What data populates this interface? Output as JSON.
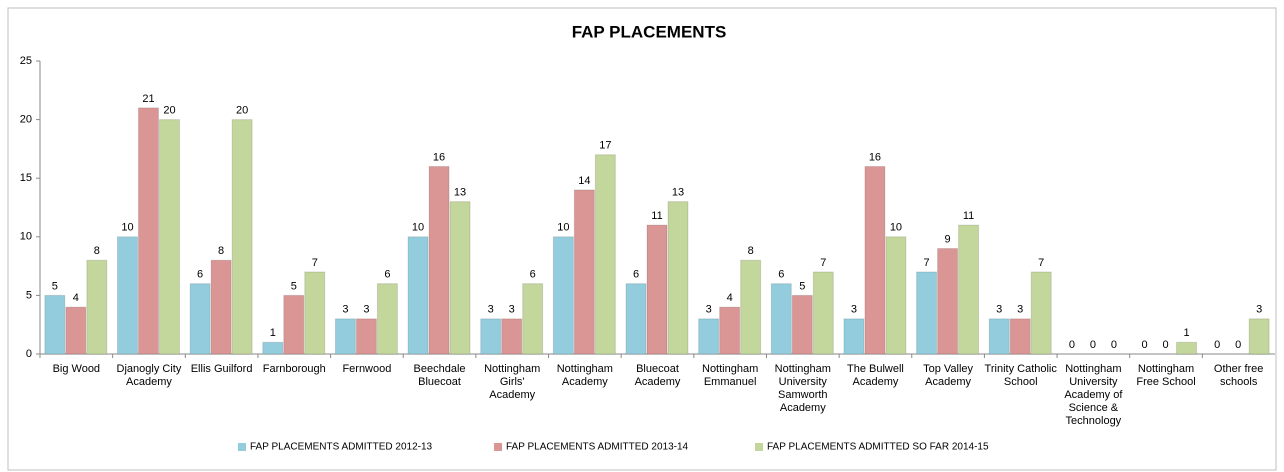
{
  "chart_data": {
    "type": "bar",
    "title": "FAP PLACEMENTS",
    "categories": [
      "Big Wood",
      "Djanogly City Academy",
      "Ellis Guilford",
      "Farnborough",
      "Fernwood",
      "Beechdale Bluecoat",
      "Nottingham Girls' Academy",
      "Nottingham Academy",
      "Bluecoat Academy",
      "Nottingham Emmanuel",
      "Nottingham University Samworth Academy",
      "The Bulwell Academy",
      "Top Valley Academy",
      "Trinity Catholic School",
      "Nottingham University Academy of Science & Technology",
      "Nottingham Free School",
      "Other free schools"
    ],
    "series": [
      {
        "name": "FAP PLACEMENTS ADMITTED 2012-13",
        "color": "#93cddd",
        "values": [
          5,
          10,
          6,
          1,
          3,
          10,
          3,
          10,
          6,
          3,
          6,
          3,
          7,
          3,
          0,
          0,
          0
        ]
      },
      {
        "name": "FAP PLACEMENTS ADMITTED 2013-14",
        "color": "#da9694",
        "values": [
          4,
          21,
          8,
          5,
          3,
          16,
          3,
          14,
          11,
          4,
          5,
          16,
          9,
          3,
          0,
          0,
          0
        ]
      },
      {
        "name": "FAP PLACEMENTS ADMITTED SO FAR 2014-15",
        "color": "#c3d69b",
        "values": [
          8,
          20,
          20,
          7,
          6,
          13,
          6,
          17,
          13,
          8,
          7,
          10,
          11,
          7,
          0,
          1,
          3
        ]
      }
    ],
    "ylim": [
      0,
      25
    ],
    "yticks": [
      0,
      5,
      10,
      15,
      20,
      25
    ],
    "grid": false,
    "legend": "bottom"
  }
}
